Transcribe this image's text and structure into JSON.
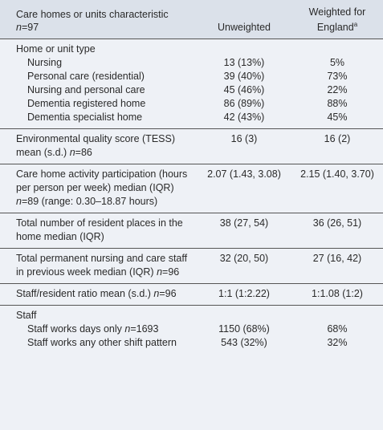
{
  "header": {
    "cells": [
      [
        {
          "text": "Care homes or units characteristic "
        },
        {
          "text": "n",
          "italic": true
        },
        {
          "text": "=97"
        }
      ],
      [
        {
          "text": "Unweighted"
        }
      ],
      [
        {
          "text": "Weighted for England"
        },
        {
          "text": "a",
          "superscript": true
        }
      ]
    ]
  },
  "sections": [
    {
      "rows": [
        {
          "cells": [
            [
              {
                "text": "Home or unit type"
              }
            ]
          ]
        },
        {
          "indent": true,
          "cells": [
            [
              {
                "text": "Nursing"
              }
            ],
            [
              {
                "text": "13 (13%)"
              }
            ],
            [
              {
                "text": "5%"
              }
            ]
          ]
        },
        {
          "indent": true,
          "cells": [
            [
              {
                "text": "Personal care (residential)"
              }
            ],
            [
              {
                "text": "39 (40%)"
              }
            ],
            [
              {
                "text": "73%"
              }
            ]
          ]
        },
        {
          "indent": true,
          "cells": [
            [
              {
                "text": "Nursing and personal care"
              }
            ],
            [
              {
                "text": "45 (46%)"
              }
            ],
            [
              {
                "text": "22%"
              }
            ]
          ]
        },
        {
          "indent": true,
          "cells": [
            [
              {
                "text": "Dementia registered home"
              }
            ],
            [
              {
                "text": "86 (89%)"
              }
            ],
            [
              {
                "text": "88%"
              }
            ]
          ]
        },
        {
          "indent": true,
          "cells": [
            [
              {
                "text": "Dementia specialist home"
              }
            ],
            [
              {
                "text": "42 (43%)"
              }
            ],
            [
              {
                "text": "45%"
              }
            ]
          ]
        }
      ]
    },
    {
      "rows": [
        {
          "cells": [
            [
              {
                "text": "Environmental quality score (TESS) mean (s.d.) "
              },
              {
                "text": "n",
                "italic": true
              },
              {
                "text": "=86"
              }
            ],
            [
              {
                "text": "16 (3)"
              }
            ],
            [
              {
                "text": "16 (2)"
              }
            ]
          ]
        }
      ]
    },
    {
      "rows": [
        {
          "cells": [
            [
              {
                "text": "Care home activity participation (hours per person per week) median (IQR) "
              },
              {
                "text": "n",
                "italic": true
              },
              {
                "text": "=89 (range: 0.30–18.87 hours)"
              }
            ],
            [
              {
                "text": "2.07 (1.43, 3.08)"
              }
            ],
            [
              {
                "text": "2.15 (1.40, 3.70)"
              }
            ]
          ]
        }
      ]
    },
    {
      "rows": [
        {
          "cells": [
            [
              {
                "text": "Total number of resident places in the home median (IQR)"
              }
            ],
            [
              {
                "text": "38 (27, 54)"
              }
            ],
            [
              {
                "text": "36 (26, 51)"
              }
            ]
          ]
        }
      ]
    },
    {
      "rows": [
        {
          "cells": [
            [
              {
                "text": "Total permanent nursing and care staff in previous week median (IQR) "
              },
              {
                "text": "n",
                "italic": true
              },
              {
                "text": "=96"
              }
            ],
            [
              {
                "text": "32 (20, 50)"
              }
            ],
            [
              {
                "text": "27 (16, 42)"
              }
            ]
          ]
        }
      ]
    },
    {
      "rows": [
        {
          "cells": [
            [
              {
                "text": "Staff/resident ratio mean (s.d.) "
              },
              {
                "text": "n",
                "italic": true
              },
              {
                "text": "=96"
              }
            ],
            [
              {
                "text": "1:1 (1:2.22)"
              }
            ],
            [
              {
                "text": "1:1.08 (1:2)"
              }
            ]
          ]
        }
      ]
    },
    {
      "rows": [
        {
          "cells": [
            [
              {
                "text": "Staff"
              }
            ]
          ]
        },
        {
          "indent": true,
          "cells": [
            [
              {
                "text": "Staff works days only "
              },
              {
                "text": "n",
                "italic": true
              },
              {
                "text": "=1693"
              }
            ],
            [
              {
                "text": "1150 (68%)"
              }
            ],
            [
              {
                "text": "68%"
              }
            ]
          ]
        },
        {
          "indent": true,
          "cells": [
            [
              {
                "text": "Staff works any other shift pattern"
              }
            ],
            [
              {
                "text": "543 (32%)"
              }
            ],
            [
              {
                "text": "32%"
              }
            ]
          ]
        }
      ]
    }
  ]
}
